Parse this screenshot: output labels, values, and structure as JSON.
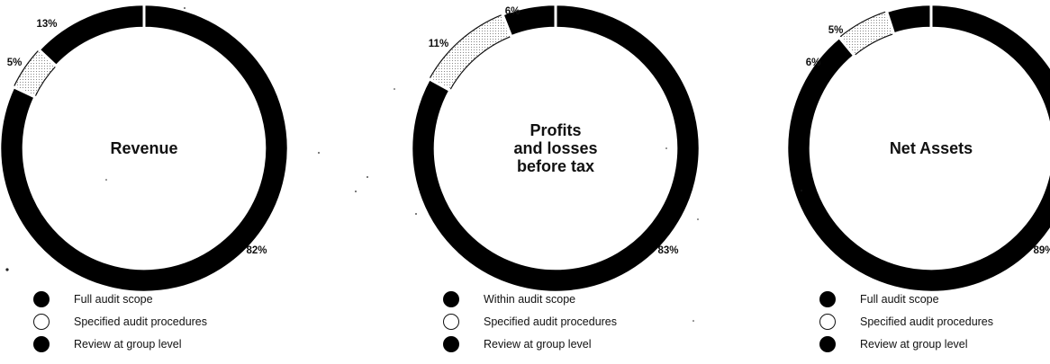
{
  "colors": {
    "ring": "#000000",
    "hollow_fill": "#ffffff",
    "dotted": "#555555",
    "background": "#ffffff"
  },
  "chart_data": [
    {
      "type": "pie",
      "variant": "donut",
      "title": "Revenue",
      "slices": [
        {
          "name": "Full audit scope",
          "value": 82,
          "label": "82%",
          "style": "filled"
        },
        {
          "name": "Specified audit procedures",
          "value": 5,
          "label": "5%",
          "style": "hollow"
        },
        {
          "name": "Review at group level",
          "value": 13,
          "label": "13%",
          "style": "filled"
        }
      ]
    },
    {
      "type": "pie",
      "variant": "donut",
      "title": "Profits and losses before tax",
      "slices": [
        {
          "name": "Within audit scope",
          "value": 83,
          "label": "83%",
          "style": "filled"
        },
        {
          "name": "Specified audit procedures",
          "value": 11,
          "label": "11%",
          "style": "hollow"
        },
        {
          "name": "Review at group level",
          "value": 6,
          "label": "6%",
          "style": "filled"
        }
      ]
    },
    {
      "type": "pie",
      "variant": "donut",
      "title": "Net Assets",
      "slices": [
        {
          "name": "Full audit scope",
          "value": 89,
          "label": "89%",
          "style": "filled"
        },
        {
          "name": "Specified audit procedures",
          "value": 6,
          "label": "6%",
          "style": "hollow"
        },
        {
          "name": "Review at group level",
          "value": 5,
          "label": "5%",
          "style": "filled"
        }
      ]
    }
  ]
}
